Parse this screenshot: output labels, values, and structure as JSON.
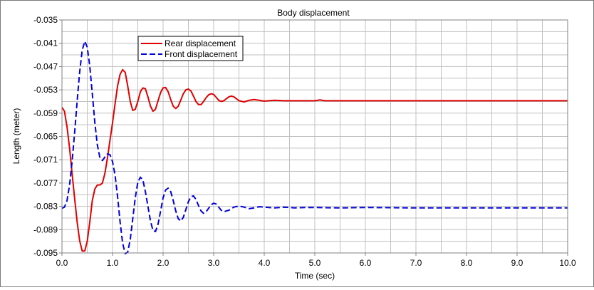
{
  "chart_data": {
    "type": "line",
    "title": "Body displacement",
    "xlabel": "Time (sec)",
    "ylabel": "Length (meter)",
    "xlim": [
      0.0,
      10.0
    ],
    "ylim": [
      -0.095,
      -0.035
    ],
    "x_ticks": [
      "0.0",
      "1.0",
      "2.0",
      "3.0",
      "4.0",
      "5.0",
      "6.0",
      "7.0",
      "8.0",
      "9.0",
      "10.0"
    ],
    "y_ticks": [
      "-0.035",
      "-0.041",
      "-0.047",
      "-0.053",
      "-0.059",
      "-0.065",
      "-0.071",
      "-0.077",
      "-0.083",
      "-0.089",
      "-0.095"
    ],
    "grid": true,
    "legend_position": "top-left",
    "series": [
      {
        "name": "Rear displacement",
        "color": "#e00000",
        "style": "solid",
        "x": [
          0,
          0.05,
          0.1,
          0.15,
          0.2,
          0.25,
          0.3,
          0.35,
          0.4,
          0.45,
          0.5,
          0.55,
          0.6,
          0.65,
          0.7,
          0.75,
          0.8,
          0.85,
          0.9,
          0.95,
          1.0,
          1.05,
          1.1,
          1.15,
          1.2,
          1.25,
          1.3,
          1.35,
          1.4,
          1.45,
          1.5,
          1.55,
          1.6,
          1.65,
          1.7,
          1.75,
          1.8,
          1.85,
          1.9,
          1.95,
          2.0,
          2.05,
          2.1,
          2.15,
          2.2,
          2.25,
          2.3,
          2.35,
          2.4,
          2.45,
          2.5,
          2.55,
          2.6,
          2.65,
          2.7,
          2.75,
          2.8,
          2.85,
          2.9,
          2.95,
          3.0,
          3.05,
          3.1,
          3.15,
          3.2,
          3.25,
          3.3,
          3.35,
          3.4,
          3.45,
          3.5,
          3.6,
          3.7,
          3.8,
          3.9,
          4.0,
          4.2,
          4.4,
          4.6,
          4.8,
          5.0,
          5.1,
          5.2,
          5.5,
          6.0,
          7.0,
          8.0,
          9.0,
          10.0
        ],
        "y": [
          -0.0575,
          -0.0585,
          -0.0625,
          -0.068,
          -0.0745,
          -0.081,
          -0.087,
          -0.0918,
          -0.0945,
          -0.0945,
          -0.092,
          -0.087,
          -0.0815,
          -0.0785,
          -0.0775,
          -0.0775,
          -0.077,
          -0.0745,
          -0.0705,
          -0.066,
          -0.0615,
          -0.0565,
          -0.052,
          -0.049,
          -0.0478,
          -0.0485,
          -0.052,
          -0.056,
          -0.0583,
          -0.058,
          -0.056,
          -0.0535,
          -0.0525,
          -0.0527,
          -0.0548,
          -0.0572,
          -0.0585,
          -0.058,
          -0.0558,
          -0.0537,
          -0.0525,
          -0.0524,
          -0.0535,
          -0.0555,
          -0.0572,
          -0.0578,
          -0.0572,
          -0.0556,
          -0.054,
          -0.053,
          -0.0528,
          -0.0533,
          -0.0546,
          -0.056,
          -0.0568,
          -0.0568,
          -0.056,
          -0.055,
          -0.0543,
          -0.054,
          -0.0542,
          -0.0549,
          -0.0557,
          -0.056,
          -0.0558,
          -0.0553,
          -0.0548,
          -0.0546,
          -0.0548,
          -0.0553,
          -0.0558,
          -0.0561,
          -0.0557,
          -0.0555,
          -0.0557,
          -0.0559,
          -0.0557,
          -0.0558,
          -0.0558,
          -0.0558,
          -0.0558,
          -0.0556,
          -0.0558,
          -0.0558,
          -0.0558,
          -0.0558,
          -0.0558,
          -0.0558,
          -0.0558
        ]
      },
      {
        "name": "Front displacement",
        "color": "#0000dd",
        "style": "dashed",
        "x": [
          0,
          0.05,
          0.1,
          0.15,
          0.2,
          0.25,
          0.3,
          0.35,
          0.4,
          0.45,
          0.5,
          0.55,
          0.6,
          0.65,
          0.7,
          0.75,
          0.8,
          0.85,
          0.9,
          0.95,
          1.0,
          1.05,
          1.1,
          1.15,
          1.2,
          1.25,
          1.3,
          1.35,
          1.4,
          1.45,
          1.5,
          1.55,
          1.6,
          1.65,
          1.7,
          1.75,
          1.8,
          1.85,
          1.9,
          1.95,
          2.0,
          2.05,
          2.1,
          2.15,
          2.2,
          2.25,
          2.3,
          2.35,
          2.4,
          2.45,
          2.5,
          2.55,
          2.6,
          2.65,
          2.7,
          2.75,
          2.8,
          2.85,
          2.9,
          2.95,
          3.0,
          3.05,
          3.1,
          3.15,
          3.2,
          3.3,
          3.4,
          3.5,
          3.6,
          3.7,
          3.8,
          3.9,
          4.0,
          4.2,
          4.4,
          4.6,
          4.8,
          5.0,
          5.5,
          6.0,
          7.0,
          8.0,
          9.0,
          10.0
        ],
        "y": [
          -0.0835,
          -0.0832,
          -0.0815,
          -0.0775,
          -0.0715,
          -0.064,
          -0.056,
          -0.0485,
          -0.0428,
          -0.0405,
          -0.042,
          -0.047,
          -0.054,
          -0.0615,
          -0.0672,
          -0.0705,
          -0.0712,
          -0.0703,
          -0.0695,
          -0.0697,
          -0.0715,
          -0.075,
          -0.0805,
          -0.087,
          -0.0925,
          -0.0952,
          -0.0948,
          -0.0915,
          -0.0862,
          -0.0808,
          -0.0768,
          -0.0755,
          -0.0762,
          -0.0792,
          -0.083,
          -0.0868,
          -0.0892,
          -0.0895,
          -0.0876,
          -0.0842,
          -0.0808,
          -0.0788,
          -0.0783,
          -0.0792,
          -0.0815,
          -0.0842,
          -0.0862,
          -0.0868,
          -0.0858,
          -0.0838,
          -0.0818,
          -0.0805,
          -0.0803,
          -0.0812,
          -0.0828,
          -0.0842,
          -0.0848,
          -0.0844,
          -0.0835,
          -0.0826,
          -0.0822,
          -0.0824,
          -0.0832,
          -0.084,
          -0.0844,
          -0.084,
          -0.0832,
          -0.0829,
          -0.0832,
          -0.0836,
          -0.0834,
          -0.0831,
          -0.0832,
          -0.0834,
          -0.0832,
          -0.0834,
          -0.0833,
          -0.0833,
          -0.0834,
          -0.0833,
          -0.0834,
          -0.0834,
          -0.0834,
          -0.0834
        ]
      }
    ]
  }
}
